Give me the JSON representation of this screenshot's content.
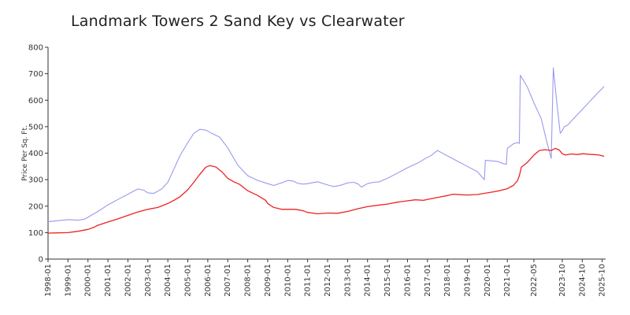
{
  "chart_data": {
    "type": "line",
    "title": "Landmark Towers 2 Sand Key vs Clearwater",
    "xlabel": "",
    "ylabel": "Price Per Sq. Ft.",
    "ylim": [
      0,
      800
    ],
    "yticks": [
      "0",
      "100",
      "200",
      "300",
      "400",
      "500",
      "600",
      "700",
      "800"
    ],
    "xlim": [
      1998.0,
      2025.92
    ],
    "x_tick_labels": [
      {
        "label": "1998-01",
        "x": 1998.0
      },
      {
        "label": "1999-01",
        "x": 1999.0
      },
      {
        "label": "2000-01",
        "x": 2000.0
      },
      {
        "label": "2001-01",
        "x": 2001.0
      },
      {
        "label": "2002-01",
        "x": 2002.0
      },
      {
        "label": "2003-01",
        "x": 2003.0
      },
      {
        "label": "2004-01",
        "x": 2004.0
      },
      {
        "label": "2005-01",
        "x": 2005.0
      },
      {
        "label": "2006-01",
        "x": 2006.0
      },
      {
        "label": "2007-01",
        "x": 2007.0
      },
      {
        "label": "2008-01",
        "x": 2008.0
      },
      {
        "label": "2009-01",
        "x": 2009.0
      },
      {
        "label": "2010-01",
        "x": 2010.0
      },
      {
        "label": "2011-01",
        "x": 2011.0
      },
      {
        "label": "2012-01",
        "x": 2012.0
      },
      {
        "label": "2013-01",
        "x": 2013.0
      },
      {
        "label": "2014-01",
        "x": 2014.0
      },
      {
        "label": "2015-01",
        "x": 2015.0
      },
      {
        "label": "2016-01",
        "x": 2016.0
      },
      {
        "label": "2017-01",
        "x": 2017.0
      },
      {
        "label": "2018-01",
        "x": 2018.0
      },
      {
        "label": "2019-01",
        "x": 2019.0
      },
      {
        "label": "2020-01",
        "x": 2020.0
      },
      {
        "label": "2021-01",
        "x": 2021.0
      },
      {
        "label": "2022-05",
        "x": 2022.33
      },
      {
        "label": "2023-10",
        "x": 2023.75
      },
      {
        "label": "2024-10",
        "x": 2024.75
      },
      {
        "label": "2025-10",
        "x": 2025.75
      }
    ],
    "grid": false,
    "series": [
      {
        "color": "#9999ee",
        "points": [
          [
            1998.0,
            141
          ],
          [
            1998.5,
            145
          ],
          [
            1999.0,
            149
          ],
          [
            1999.5,
            147
          ],
          [
            1999.8,
            150
          ],
          [
            2000.0,
            158
          ],
          [
            2000.5,
            180
          ],
          [
            2001.0,
            205
          ],
          [
            2001.5,
            225
          ],
          [
            2002.0,
            245
          ],
          [
            2002.5,
            265
          ],
          [
            2002.8,
            260
          ],
          [
            2003.0,
            250
          ],
          [
            2003.3,
            248
          ],
          [
            2003.7,
            265
          ],
          [
            2004.0,
            290
          ],
          [
            2004.3,
            340
          ],
          [
            2004.6,
            390
          ],
          [
            2005.0,
            440
          ],
          [
            2005.3,
            475
          ],
          [
            2005.6,
            490
          ],
          [
            2005.9,
            487
          ],
          [
            2006.2,
            475
          ],
          [
            2006.6,
            460
          ],
          [
            2007.0,
            420
          ],
          [
            2007.5,
            355
          ],
          [
            2008.0,
            315
          ],
          [
            2008.5,
            297
          ],
          [
            2009.0,
            285
          ],
          [
            2009.3,
            278
          ],
          [
            2009.7,
            288
          ],
          [
            2010.0,
            297
          ],
          [
            2010.3,
            294
          ],
          [
            2010.5,
            286
          ],
          [
            2010.8,
            283
          ],
          [
            2011.0,
            285
          ],
          [
            2011.5,
            292
          ],
          [
            2012.0,
            280
          ],
          [
            2012.3,
            274
          ],
          [
            2012.7,
            280
          ],
          [
            2013.0,
            288
          ],
          [
            2013.3,
            290
          ],
          [
            2013.5,
            285
          ],
          [
            2013.7,
            272
          ],
          [
            2014.0,
            285
          ],
          [
            2014.3,
            290
          ],
          [
            2014.6,
            292
          ],
          [
            2015.0,
            305
          ],
          [
            2015.5,
            325
          ],
          [
            2016.0,
            345
          ],
          [
            2016.5,
            362
          ],
          [
            2016.9,
            380
          ],
          [
            2017.2,
            392
          ],
          [
            2017.5,
            410
          ],
          [
            2017.7,
            402
          ],
          [
            2018.0,
            390
          ],
          [
            2018.5,
            370
          ],
          [
            2019.0,
            350
          ],
          [
            2019.5,
            330
          ],
          [
            2019.85,
            300
          ],
          [
            2019.9,
            373
          ],
          [
            2020.5,
            369
          ],
          [
            2020.8,
            360
          ],
          [
            2020.95,
            358
          ],
          [
            2021.0,
            418
          ],
          [
            2021.3,
            435
          ],
          [
            2021.5,
            440
          ],
          [
            2021.6,
            437
          ],
          [
            2021.65,
            694
          ],
          [
            2022.0,
            650
          ],
          [
            2022.33,
            590
          ],
          [
            2022.7,
            530
          ],
          [
            2023.0,
            435
          ],
          [
            2023.2,
            380
          ],
          [
            2023.3,
            722
          ],
          [
            2023.5,
            575
          ],
          [
            2023.65,
            475
          ],
          [
            2023.75,
            485
          ],
          [
            2023.85,
            500
          ],
          [
            2024.0,
            505
          ],
          [
            2024.5,
            545
          ],
          [
            2025.0,
            585
          ],
          [
            2025.5,
            625
          ],
          [
            2025.85,
            652
          ]
        ]
      },
      {
        "color": "#ee2222",
        "points": [
          [
            1998.0,
            98
          ],
          [
            1998.5,
            99
          ],
          [
            1999.0,
            100
          ],
          [
            1999.5,
            105
          ],
          [
            2000.0,
            112
          ],
          [
            2000.3,
            120
          ],
          [
            2000.5,
            128
          ],
          [
            2001.0,
            140
          ],
          [
            2001.5,
            152
          ],
          [
            2002.0,
            165
          ],
          [
            2002.5,
            178
          ],
          [
            2003.0,
            188
          ],
          [
            2003.5,
            195
          ],
          [
            2004.0,
            210
          ],
          [
            2004.3,
            222
          ],
          [
            2004.6,
            235
          ],
          [
            2005.0,
            262
          ],
          [
            2005.3,
            290
          ],
          [
            2005.6,
            320
          ],
          [
            2005.9,
            347
          ],
          [
            2006.1,
            353
          ],
          [
            2006.4,
            348
          ],
          [
            2006.7,
            330
          ],
          [
            2007.0,
            305
          ],
          [
            2007.3,
            292
          ],
          [
            2007.6,
            282
          ],
          [
            2008.0,
            258
          ],
          [
            2008.5,
            240
          ],
          [
            2008.9,
            222
          ],
          [
            2009.0,
            210
          ],
          [
            2009.3,
            195
          ],
          [
            2009.7,
            188
          ],
          [
            2010.0,
            188
          ],
          [
            2010.4,
            188
          ],
          [
            2010.8,
            182
          ],
          [
            2011.0,
            176
          ],
          [
            2011.5,
            171
          ],
          [
            2012.0,
            174
          ],
          [
            2012.5,
            173
          ],
          [
            2013.0,
            180
          ],
          [
            2013.5,
            190
          ],
          [
            2014.0,
            198
          ],
          [
            2014.5,
            203
          ],
          [
            2015.0,
            208
          ],
          [
            2015.5,
            215
          ],
          [
            2016.0,
            220
          ],
          [
            2016.4,
            224
          ],
          [
            2016.8,
            222
          ],
          [
            2017.0,
            225
          ],
          [
            2017.5,
            233
          ],
          [
            2018.0,
            240
          ],
          [
            2018.3,
            245
          ],
          [
            2018.7,
            243
          ],
          [
            2019.0,
            242
          ],
          [
            2019.5,
            244
          ],
          [
            2020.0,
            250
          ],
          [
            2020.3,
            254
          ],
          [
            2020.6,
            258
          ],
          [
            2021.0,
            266
          ],
          [
            2021.3,
            278
          ],
          [
            2021.5,
            295
          ],
          [
            2021.6,
            315
          ],
          [
            2021.7,
            347
          ],
          [
            2022.0,
            365
          ],
          [
            2022.33,
            393
          ],
          [
            2022.6,
            410
          ],
          [
            2022.9,
            413
          ],
          [
            2023.2,
            410
          ],
          [
            2023.4,
            418
          ],
          [
            2023.6,
            412
          ],
          [
            2023.75,
            398
          ],
          [
            2023.9,
            393
          ],
          [
            2024.2,
            397
          ],
          [
            2024.5,
            395
          ],
          [
            2024.8,
            398
          ],
          [
            2025.0,
            396
          ],
          [
            2025.3,
            395
          ],
          [
            2025.6,
            393
          ],
          [
            2025.85,
            388
          ]
        ]
      }
    ]
  }
}
